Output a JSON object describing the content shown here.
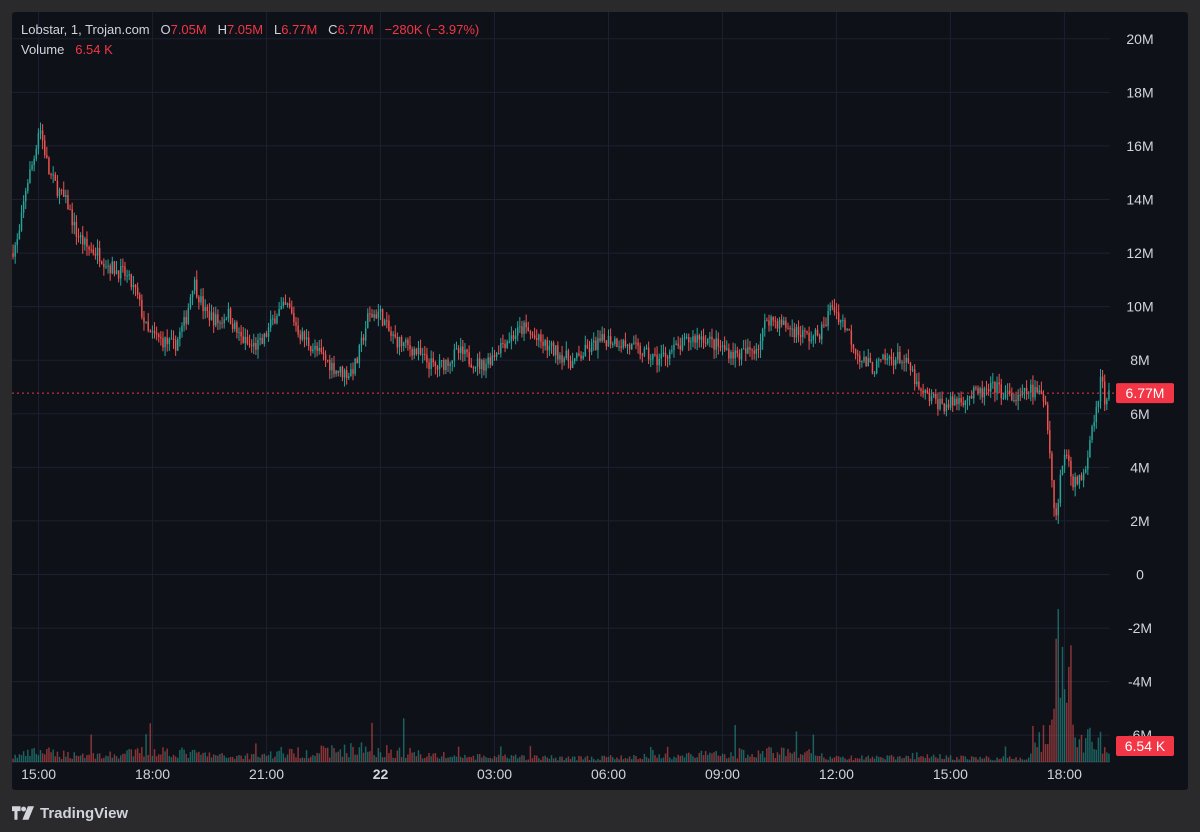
{
  "legend": {
    "symbol": "Lobstar, 1, Trojan.com",
    "o_label": "O",
    "o_value": "7.05M",
    "h_label": "H",
    "h_value": "7.05M",
    "l_label": "L",
    "l_value": "6.77M",
    "c_label": "C",
    "c_value": "6.77M",
    "change": "−280K (−3.97%)",
    "volume_label": "Volume",
    "volume_value": "6.54 K"
  },
  "footer": {
    "brand": "TradingView"
  },
  "colors": {
    "background": "#0f1119",
    "up": "#26a69a",
    "down": "#ef5350",
    "grid": "#1c2030",
    "axis_text": "#d1d4dc",
    "price_badge": "#f23645"
  },
  "chart_data": {
    "type": "candlestick",
    "y_ticks": [
      "20M",
      "18M",
      "16M",
      "14M",
      "12M",
      "10M",
      "8M",
      "6M",
      "4M",
      "2M",
      "0",
      "-2M",
      "-4M",
      "-6M"
    ],
    "y_tick_values": [
      20,
      18,
      16,
      14,
      12,
      10,
      8,
      6,
      4,
      2,
      0,
      -2,
      -4,
      -6
    ],
    "x_ticks": [
      "15:00",
      "18:00",
      "21:00",
      "22",
      "03:00",
      "06:00",
      "09:00",
      "12:00",
      "15:00",
      "18:00"
    ],
    "x_tick_hours": [
      15,
      18,
      21,
      24,
      27,
      30,
      33,
      36,
      39,
      42
    ],
    "x_range_hours": [
      14.3,
      43.2
    ],
    "y_range_millions": [
      -7.0,
      21.0
    ],
    "last_price": "6.77M",
    "last_price_value": 6.77,
    "last_volume": "6.54 K",
    "price_path_millions": [
      [
        14.3,
        12.0
      ],
      [
        14.5,
        12.5
      ],
      [
        14.7,
        14.5
      ],
      [
        14.9,
        15.5
      ],
      [
        15.05,
        16.8
      ],
      [
        15.3,
        15.0
      ],
      [
        15.6,
        14.2
      ],
      [
        15.8,
        13.8
      ],
      [
        16.0,
        12.8
      ],
      [
        16.3,
        12.2
      ],
      [
        16.6,
        12.0
      ],
      [
        16.9,
        11.5
      ],
      [
        17.3,
        11.2
      ],
      [
        17.6,
        10.5
      ],
      [
        17.9,
        9.0
      ],
      [
        18.2,
        8.8
      ],
      [
        18.6,
        8.5
      ],
      [
        18.9,
        9.5
      ],
      [
        19.1,
        11.0
      ],
      [
        19.4,
        9.8
      ],
      [
        19.8,
        9.4
      ],
      [
        20.0,
        9.8
      ],
      [
        20.3,
        8.9
      ],
      [
        20.6,
        8.5
      ],
      [
        20.9,
        8.6
      ],
      [
        21.3,
        9.8
      ],
      [
        21.6,
        10.0
      ],
      [
        21.9,
        9.0
      ],
      [
        22.3,
        8.4
      ],
      [
        22.6,
        8.0
      ],
      [
        22.9,
        7.6
      ],
      [
        23.2,
        7.5
      ],
      [
        23.4,
        7.9
      ],
      [
        23.7,
        9.6
      ],
      [
        24.0,
        9.8
      ],
      [
        24.3,
        8.9
      ],
      [
        24.6,
        8.6
      ],
      [
        24.9,
        8.4
      ],
      [
        25.2,
        8.0
      ],
      [
        25.5,
        7.7
      ],
      [
        25.8,
        8.0
      ],
      [
        26.1,
        8.3
      ],
      [
        26.4,
        8.0
      ],
      [
        26.7,
        7.8
      ],
      [
        27.0,
        8.2
      ],
      [
        27.2,
        8.6
      ],
      [
        27.5,
        8.9
      ],
      [
        27.8,
        9.2
      ],
      [
        28.1,
        8.8
      ],
      [
        28.4,
        8.5
      ],
      [
        28.8,
        8.2
      ],
      [
        29.1,
        7.9
      ],
      [
        29.4,
        8.3
      ],
      [
        29.7,
        8.6
      ],
      [
        30.0,
        8.8
      ],
      [
        30.3,
        8.7
      ],
      [
        30.6,
        8.5
      ],
      [
        30.9,
        8.3
      ],
      [
        31.3,
        8.0
      ],
      [
        31.6,
        8.3
      ],
      [
        31.9,
        8.5
      ],
      [
        32.2,
        8.8
      ],
      [
        32.5,
        8.9
      ],
      [
        32.8,
        8.6
      ],
      [
        33.1,
        8.4
      ],
      [
        33.4,
        8.2
      ],
      [
        33.7,
        8.3
      ],
      [
        34.0,
        8.6
      ],
      [
        34.2,
        9.6
      ],
      [
        34.5,
        9.4
      ],
      [
        34.8,
        9.2
      ],
      [
        35.1,
        9.0
      ],
      [
        35.4,
        8.8
      ],
      [
        35.7,
        9.2
      ],
      [
        35.9,
        10.1
      ],
      [
        36.1,
        9.6
      ],
      [
        36.3,
        9.2
      ],
      [
        36.5,
        8.5
      ],
      [
        36.7,
        8.0
      ],
      [
        37.0,
        7.7
      ],
      [
        37.3,
        8.0
      ],
      [
        37.7,
        8.1
      ],
      [
        38.0,
        7.6
      ],
      [
        38.2,
        6.8
      ],
      [
        38.6,
        6.5
      ],
      [
        38.9,
        6.3
      ],
      [
        39.2,
        6.5
      ],
      [
        39.6,
        6.7
      ],
      [
        40.0,
        6.8
      ],
      [
        40.2,
        7.0
      ],
      [
        40.5,
        6.7
      ],
      [
        40.8,
        6.5
      ],
      [
        41.1,
        6.9
      ],
      [
        41.4,
        6.7
      ],
      [
        41.55,
        6.4
      ],
      [
        41.7,
        3.5
      ],
      [
        41.8,
        2.0
      ],
      [
        41.95,
        4.0
      ],
      [
        42.1,
        4.6
      ],
      [
        42.25,
        3.5
      ],
      [
        42.4,
        3.4
      ],
      [
        42.6,
        4.2
      ],
      [
        42.75,
        5.6
      ],
      [
        42.9,
        6.4
      ],
      [
        43.0,
        7.6
      ],
      [
        43.1,
        6.2
      ],
      [
        43.2,
        6.77
      ]
    ],
    "volume_scale_max_thousands": 620,
    "volume_profile_thousands": [
      [
        14.3,
        20
      ],
      [
        15.0,
        40
      ],
      [
        15.5,
        30
      ],
      [
        17.0,
        25
      ],
      [
        18.0,
        45
      ],
      [
        20.0,
        20
      ],
      [
        23.5,
        50
      ],
      [
        26.0,
        20
      ],
      [
        30.0,
        15
      ],
      [
        34.5,
        40
      ],
      [
        36.0,
        15
      ],
      [
        38.5,
        20
      ],
      [
        41.0,
        12
      ],
      [
        41.6,
        140
      ],
      [
        41.8,
        620
      ],
      [
        42.0,
        300
      ],
      [
        42.3,
        80
      ],
      [
        42.8,
        90
      ],
      [
        43.2,
        45
      ]
    ]
  }
}
